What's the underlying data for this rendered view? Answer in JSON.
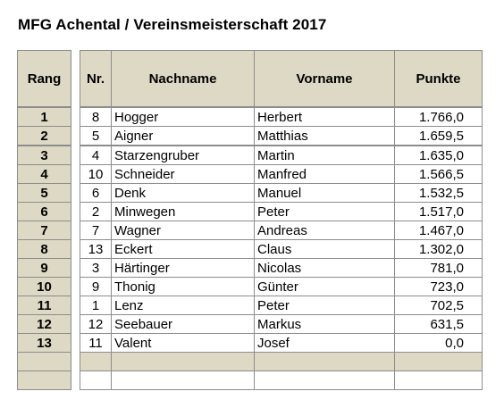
{
  "title": "MFG Achental / Vereinsmeisterschaft 2017",
  "headers": {
    "rang": "Rang",
    "nr": "Nr.",
    "nachname": "Nachname",
    "vorname": "Vorname",
    "punkte": "Punkte"
  },
  "rows": [
    {
      "rang": "1",
      "nr": "8",
      "nachname": "Hogger",
      "vorname": "Herbert",
      "punkte": "1.766,0"
    },
    {
      "rang": "2",
      "nr": "5",
      "nachname": "Aigner",
      "vorname": "Matthias",
      "punkte": "1.659,5"
    },
    {
      "rang": "3",
      "nr": "4",
      "nachname": "Starzengruber",
      "vorname": "Martin",
      "punkte": "1.635,0"
    },
    {
      "rang": "4",
      "nr": "10",
      "nachname": "Schneider",
      "vorname": "Manfred",
      "punkte": "1.566,5"
    },
    {
      "rang": "5",
      "nr": "6",
      "nachname": "Denk",
      "vorname": "Manuel",
      "punkte": "1.532,5"
    },
    {
      "rang": "6",
      "nr": "2",
      "nachname": "Minwegen",
      "vorname": "Peter",
      "punkte": "1.517,0"
    },
    {
      "rang": "7",
      "nr": "7",
      "nachname": "Wagner",
      "vorname": "Andreas",
      "punkte": "1.467,0"
    },
    {
      "rang": "8",
      "nr": "13",
      "nachname": "Eckert",
      "vorname": "Claus",
      "punkte": "1.302,0"
    },
    {
      "rang": "9",
      "nr": "3",
      "nachname": "Härtinger",
      "vorname": "Nicolas",
      "punkte": "781,0"
    },
    {
      "rang": "10",
      "nr": "9",
      "nachname": "Thonig",
      "vorname": "Günter",
      "punkte": "723,0"
    },
    {
      "rang": "11",
      "nr": "1",
      "nachname": "Lenz",
      "vorname": "Peter",
      "punkte": "702,5"
    },
    {
      "rang": "12",
      "nr": "12",
      "nachname": "Seebauer",
      "vorname": "Markus",
      "punkte": "631,5"
    },
    {
      "rang": "13",
      "nr": "11",
      "nachname": "Valent",
      "vorname": "Josef",
      "punkte": "0,0"
    }
  ]
}
